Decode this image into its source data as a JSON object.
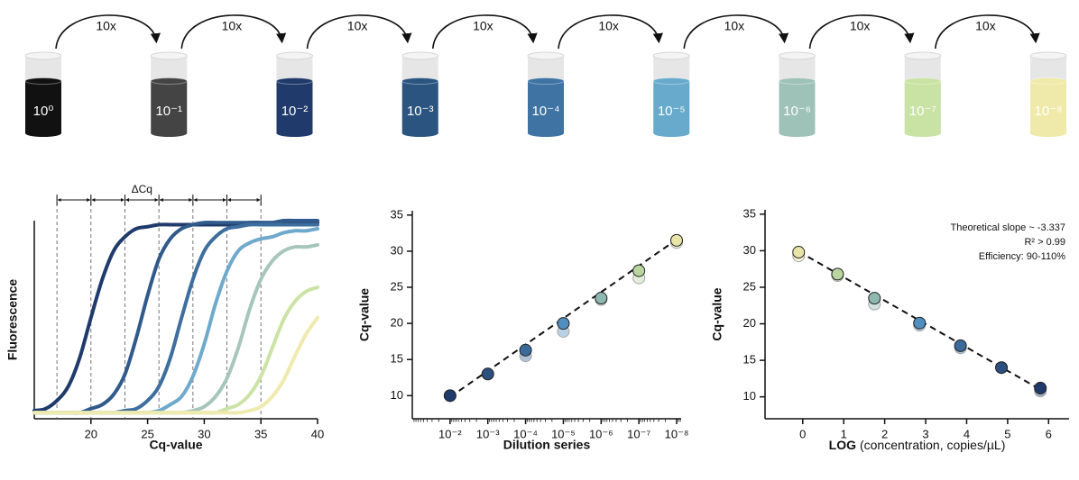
{
  "dilution": {
    "tubes": [
      {
        "label": "10⁰",
        "color": "#111111"
      },
      {
        "label": "10⁻¹",
        "color": "#444444"
      },
      {
        "label": "10⁻²",
        "color": "#1f3a6b"
      },
      {
        "label": "10⁻³",
        "color": "#2b5580"
      },
      {
        "label": "10⁻⁴",
        "color": "#3f73a3"
      },
      {
        "label": "10⁻⁵",
        "color": "#67aacb"
      },
      {
        "label": "10⁻⁶",
        "color": "#9fc2b8"
      },
      {
        "label": "10⁻⁷",
        "color": "#c8e3a4"
      },
      {
        "label": "10⁻⁸",
        "color": "#efeaa9"
      }
    ],
    "arrows": [
      "10x",
      "10x",
      "10x",
      "10x",
      "10x",
      "10x",
      "10x",
      "10x"
    ]
  },
  "chart_data": [
    {
      "type": "line",
      "xlabel": "Cq-value",
      "ylabel": "Fluorescence",
      "x": [
        15,
        16,
        17,
        18,
        19,
        20,
        21,
        22,
        23,
        24,
        25,
        26,
        27,
        28,
        29,
        30,
        31,
        32,
        33,
        34,
        35,
        36,
        37,
        38,
        39,
        40
      ],
      "series": [
        {
          "color": "#1f3a6b",
          "values": [
            0.04,
            0.05,
            0.09,
            0.16,
            0.3,
            0.5,
            0.69,
            0.83,
            0.9,
            0.94,
            0.95,
            0.96,
            0.96,
            0.96,
            0.96,
            0.96,
            0.96,
            0.96,
            0.96,
            0.97,
            0.97,
            0.97,
            0.97,
            0.97,
            0.97,
            0.97
          ]
        },
        {
          "color": "#2f5a8a",
          "values": [
            0.03,
            0.03,
            0.03,
            0.03,
            0.03,
            0.05,
            0.07,
            0.12,
            0.22,
            0.4,
            0.61,
            0.79,
            0.89,
            0.94,
            0.96,
            0.97,
            0.97,
            0.97,
            0.97,
            0.97,
            0.97,
            0.97,
            0.98,
            0.98,
            0.98,
            0.98
          ]
        },
        {
          "color": "#3e6e9e",
          "values": [
            0.03,
            0.03,
            0.03,
            0.03,
            0.03,
            0.03,
            0.03,
            0.03,
            0.04,
            0.05,
            0.09,
            0.16,
            0.3,
            0.5,
            0.69,
            0.83,
            0.9,
            0.94,
            0.95,
            0.96,
            0.96,
            0.96,
            0.96,
            0.96,
            0.96,
            0.96
          ]
        },
        {
          "color": "#6fa9cc",
          "values": [
            0.03,
            0.03,
            0.03,
            0.03,
            0.03,
            0.03,
            0.03,
            0.03,
            0.03,
            0.03,
            0.03,
            0.04,
            0.07,
            0.11,
            0.21,
            0.37,
            0.57,
            0.73,
            0.83,
            0.87,
            0.89,
            0.9,
            0.92,
            0.93,
            0.93,
            0.94
          ]
        },
        {
          "color": "#a7c6bb",
          "values": [
            0.03,
            0.03,
            0.03,
            0.03,
            0.03,
            0.03,
            0.03,
            0.03,
            0.03,
            0.03,
            0.03,
            0.03,
            0.03,
            0.03,
            0.04,
            0.06,
            0.11,
            0.2,
            0.35,
            0.54,
            0.69,
            0.78,
            0.83,
            0.85,
            0.85,
            0.86
          ]
        },
        {
          "color": "#cde3a5",
          "values": [
            0.03,
            0.03,
            0.03,
            0.03,
            0.03,
            0.03,
            0.03,
            0.03,
            0.03,
            0.03,
            0.03,
            0.03,
            0.03,
            0.03,
            0.03,
            0.03,
            0.03,
            0.05,
            0.07,
            0.12,
            0.21,
            0.35,
            0.49,
            0.58,
            0.63,
            0.65
          ]
        },
        {
          "color": "#efeaaf",
          "values": [
            0.03,
            0.03,
            0.03,
            0.03,
            0.03,
            0.03,
            0.03,
            0.03,
            0.03,
            0.03,
            0.03,
            0.03,
            0.03,
            0.03,
            0.03,
            0.03,
            0.03,
            0.03,
            0.03,
            0.04,
            0.06,
            0.11,
            0.19,
            0.31,
            0.42,
            0.5
          ]
        }
      ],
      "xlim": [
        15,
        40
      ],
      "xticks": [
        20,
        25,
        30,
        35,
        40
      ],
      "ylim": [
        0,
        0.98
      ],
      "cq_markers": [
        17,
        20,
        23,
        26,
        29,
        32,
        35
      ],
      "annotation": "ΔCq"
    },
    {
      "type": "scatter",
      "xlabel": "Dilution series",
      "ylabel": "Cq-value",
      "x_scale": "log",
      "x": [
        0.01,
        0.001,
        0.0001,
        1e-05,
        1e-06,
        1e-07,
        1e-08
      ],
      "series": [
        {
          "alpha": 0.4,
          "colors": [
            "#1f3a6b",
            "#2b4f7f",
            "#3b6b9b",
            "#4f8fc0",
            "#8fb8b0",
            "#b9d6a0",
            "#e8e4a8"
          ],
          "values": [
            10,
            13,
            15.5,
            18.9,
            23.3,
            26.3,
            31.2
          ]
        },
        {
          "colors": [
            "#1f3a6b",
            "#2b4f7f",
            "#3b6b9b",
            "#4f8fc0",
            "#8fb8b0",
            "#b9d6a0",
            "#e8e4a8"
          ],
          "values": [
            10,
            13,
            16.3,
            20,
            23.5,
            27.3,
            31.5
          ]
        }
      ],
      "fit": {
        "x": [
          0.01,
          1e-08
        ],
        "y": [
          9.8,
          31.6
        ]
      },
      "xlim": [
        0.1,
        7.6e-09
      ],
      "xticks": [
        {
          "value": 0.01,
          "label": "10⁻²"
        },
        {
          "value": 0.001,
          "label": "10⁻³"
        },
        {
          "value": 0.0001,
          "label": "10⁻⁴"
        },
        {
          "value": 1e-05,
          "label": "10⁻⁵"
        },
        {
          "value": 1e-06,
          "label": "10⁻⁶"
        },
        {
          "value": 1e-07,
          "label": "10⁻⁷"
        },
        {
          "value": 1e-08,
          "label": "10⁻⁸"
        }
      ],
      "x_minor_ticks": true,
      "ylim": [
        6.8,
        35.6
      ],
      "yticks": [
        10,
        15,
        20,
        25,
        30,
        35
      ]
    },
    {
      "type": "scatter",
      "xlabel": [
        "LOG",
        "(concentration, copies/µL)"
      ],
      "ylabel": "Cq-value",
      "x": [
        -0.1,
        0.85,
        1.75,
        2.85,
        3.85,
        4.85,
        5.8
      ],
      "series": [
        {
          "alpha": 0.4,
          "colors": [
            "#e8e4a8",
            "#b9d6a0",
            "#8fb8b0",
            "#4f8fc0",
            "#3b6b9b",
            "#2b4f7f",
            "#1f3a6b"
          ],
          "values": [
            29.3,
            26.6,
            22.7,
            19.8,
            16.7,
            14.0,
            10.8
          ]
        },
        {
          "colors": [
            "#e8e4a8",
            "#b9d6a0",
            "#8fb8b0",
            "#4f8fc0",
            "#3b6b9b",
            "#2b4f7f",
            "#1f3a6b"
          ],
          "values": [
            29.8,
            26.8,
            23.5,
            20.1,
            17.0,
            14.0,
            11.2
          ]
        }
      ],
      "fit": {
        "x": [
          -0.1,
          5.8
        ],
        "y": [
          29.9,
          11.0
        ]
      },
      "xlim": [
        -0.92,
        6.5
      ],
      "xticks": [
        0,
        1,
        2,
        3,
        4,
        5,
        6
      ],
      "ylim": [
        7.0,
        35.6
      ],
      "yticks": [
        10,
        15,
        20,
        25,
        30,
        35
      ],
      "annotations": [
        "Theoretical slope ~ -3.337",
        "R² > 0.99",
        "Efficiency: 90-110%"
      ]
    }
  ]
}
